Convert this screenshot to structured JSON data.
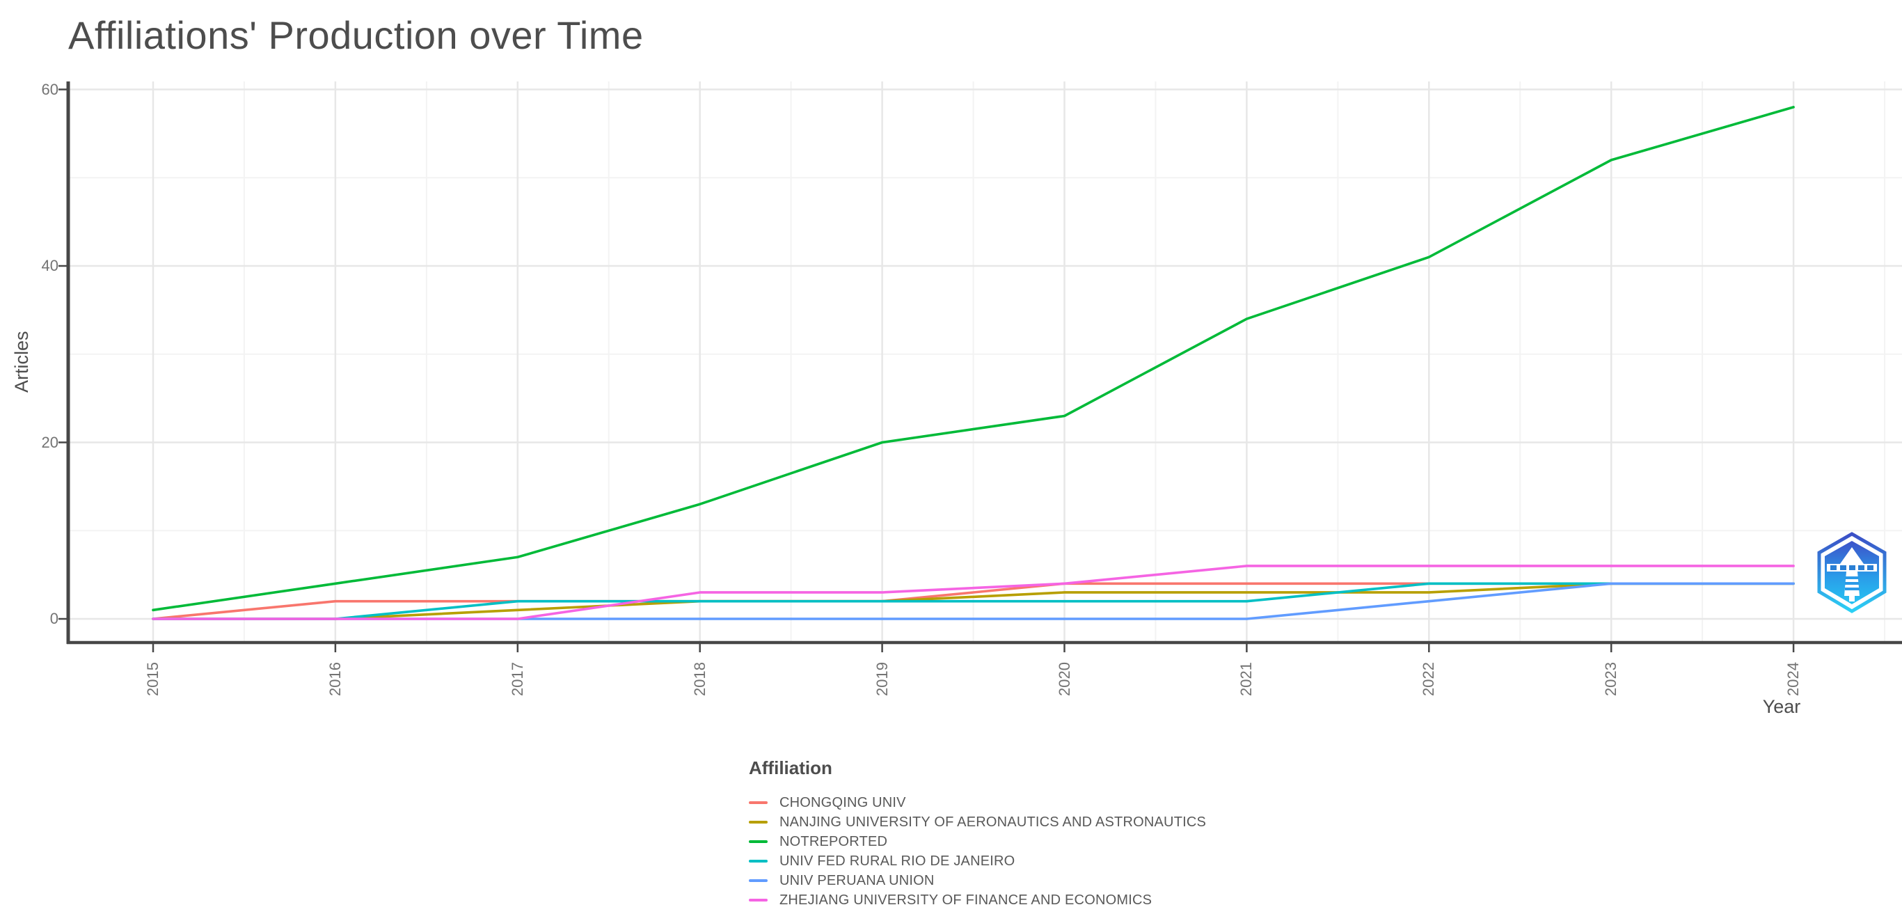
{
  "title": "Affiliations' Production over Time",
  "chart_data": {
    "type": "line",
    "x": [
      2015,
      2016,
      2017,
      2018,
      2019,
      2020,
      2021,
      2022,
      2023,
      2024
    ],
    "series": [
      {
        "name": "CHONGQING UNIV",
        "color": "#F8766D",
        "values": [
          0,
          2,
          2,
          2,
          2,
          4,
          4,
          4,
          4,
          4
        ]
      },
      {
        "name": "NANJING UNIVERSITY OF AERONAUTICS AND ASTRONAUTICS",
        "color": "#B79F00",
        "values": [
          0,
          0,
          1,
          2,
          2,
          3,
          3,
          3,
          4,
          4
        ]
      },
      {
        "name": "NOTREPORTED",
        "color": "#00BA38",
        "values": [
          1,
          4,
          7,
          13,
          20,
          23,
          34,
          41,
          52,
          58
        ]
      },
      {
        "name": "UNIV FED RURAL RIO DE JANEIRO",
        "color": "#00BFC4",
        "values": [
          0,
          0,
          2,
          2,
          2,
          2,
          2,
          4,
          4,
          4
        ]
      },
      {
        "name": "UNIV PERUANA UNION",
        "color": "#619CFF",
        "values": [
          0,
          0,
          0,
          0,
          0,
          0,
          0,
          2,
          4,
          4
        ]
      },
      {
        "name": "ZHEJIANG UNIVERSITY OF FINANCE AND ECONOMICS",
        "color": "#F564E3",
        "values": [
          0,
          0,
          0,
          3,
          3,
          4,
          6,
          6,
          6,
          6
        ]
      }
    ],
    "xlabel": "Year",
    "ylabel": "Articles",
    "yticks": [
      0,
      20,
      40,
      60
    ],
    "yticks_minor": [
      10,
      30,
      50
    ],
    "ylim": [
      0,
      60
    ],
    "legend_title": "Affiliation",
    "legend_position": "bottom-center",
    "grid": true,
    "colors": {
      "grid_major": "#e7e7e7",
      "grid_minor": "#f3f3f3",
      "axis_line": "#474747"
    }
  },
  "watermark": {
    "name": "bibliometrix-hexagon-lighthouse-logo"
  }
}
